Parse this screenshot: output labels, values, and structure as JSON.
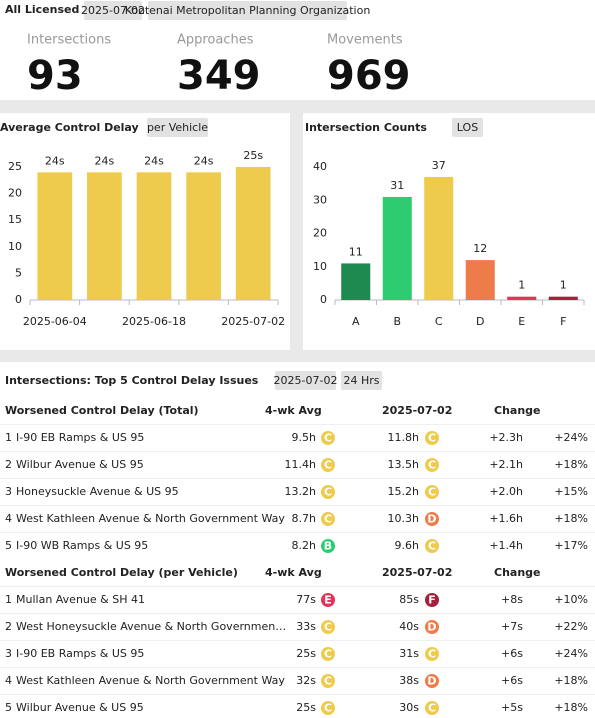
{
  "header": {
    "title": "All Licensed",
    "chips": [
      "2025-07-02",
      "Kootenai Metropolitan Planning Organization"
    ]
  },
  "kpis": [
    {
      "label": "Intersections",
      "value": 93
    },
    {
      "label": "Approaches",
      "value": 349
    },
    {
      "label": "Movements",
      "value": 969
    }
  ],
  "chart_data": [
    {
      "type": "bar",
      "title": "Average Control Delay",
      "chip": "per Vehicle",
      "categories": [
        "2025-06-04",
        null,
        "2025-06-18",
        null,
        "2025-07-02"
      ],
      "values": [
        24,
        24,
        24,
        24,
        25
      ],
      "value_labels": [
        "24s",
        "24s",
        "24s",
        "24s",
        "25s"
      ],
      "color": "#eecb4c",
      "ylim": [
        0,
        25
      ],
      "yticks": [
        0,
        5,
        10,
        15,
        20,
        25
      ],
      "grid": false
    },
    {
      "type": "bar",
      "title": "Intersection Counts",
      "chip": "LOS",
      "categories": [
        "A",
        "B",
        "C",
        "D",
        "E",
        "F"
      ],
      "values": [
        11,
        31,
        37,
        12,
        1,
        1
      ],
      "colors": [
        "#1f8a4f",
        "#2ecc71",
        "#eecb4c",
        "#ee7b4a",
        "#e0365a",
        "#a3213a"
      ],
      "ylim": [
        0,
        40
      ],
      "yticks": [
        0,
        10,
        20,
        30,
        40
      ],
      "grid": false
    }
  ],
  "tables": {
    "title": "Intersections: Top 5 Control Delay Issues",
    "chips": [
      "2025-07-02",
      "24 Hrs"
    ],
    "sections": [
      {
        "columns": [
          "Worsened Control Delay (Total)",
          "4-wk Avg",
          "2025-07-02",
          "Change"
        ],
        "rows": [
          {
            "rank": 1,
            "name": "I-90 EB Ramps & US 95",
            "avg": "9.5h",
            "avg_los": "C",
            "current": "11.8h",
            "current_los": "C",
            "change": "+2.3h",
            "pct": "+24%"
          },
          {
            "rank": 2,
            "name": "Wilbur Avenue & US 95",
            "avg": "11.4h",
            "avg_los": "C",
            "current": "13.5h",
            "current_los": "C",
            "change": "+2.1h",
            "pct": "+18%"
          },
          {
            "rank": 3,
            "name": "Honeysuckle Avenue & US 95",
            "avg": "13.2h",
            "avg_los": "C",
            "current": "15.2h",
            "current_los": "C",
            "change": "+2.0h",
            "pct": "+15%"
          },
          {
            "rank": 4,
            "name": "West Kathleen Avenue & North Government Way",
            "avg": "8.7h",
            "avg_los": "C",
            "current": "10.3h",
            "current_los": "D",
            "change": "+1.6h",
            "pct": "+18%"
          },
          {
            "rank": 5,
            "name": "I-90 WB Ramps & US 95",
            "avg": "8.2h",
            "avg_los": "B",
            "current": "9.6h",
            "current_los": "C",
            "change": "+1.4h",
            "pct": "+17%"
          }
        ]
      },
      {
        "columns": [
          "Worsened Control Delay (per Vehicle)",
          "4-wk Avg",
          "2025-07-02",
          "Change"
        ],
        "rows": [
          {
            "rank": 1,
            "name": "Mullan Avenue & SH 41",
            "avg": "77s",
            "avg_los": "E",
            "current": "85s",
            "current_los": "F",
            "change": "+8s",
            "pct": "+10%"
          },
          {
            "rank": 2,
            "name": "West Honeysuckle Avenue & North Governmen…",
            "avg": "33s",
            "avg_los": "C",
            "current": "40s",
            "current_los": "D",
            "change": "+7s",
            "pct": "+22%"
          },
          {
            "rank": 3,
            "name": "I-90 EB Ramps & US 95",
            "avg": "25s",
            "avg_los": "C",
            "current": "31s",
            "current_los": "C",
            "change": "+6s",
            "pct": "+24%"
          },
          {
            "rank": 4,
            "name": "West Kathleen Avenue & North Government Way",
            "avg": "32s",
            "avg_los": "C",
            "current": "38s",
            "current_los": "D",
            "change": "+6s",
            "pct": "+18%"
          },
          {
            "rank": 5,
            "name": "Wilbur Avenue & US 95",
            "avg": "25s",
            "avg_los": "C",
            "current": "30s",
            "current_los": "C",
            "change": "+5s",
            "pct": "+18%"
          }
        ]
      }
    ]
  }
}
